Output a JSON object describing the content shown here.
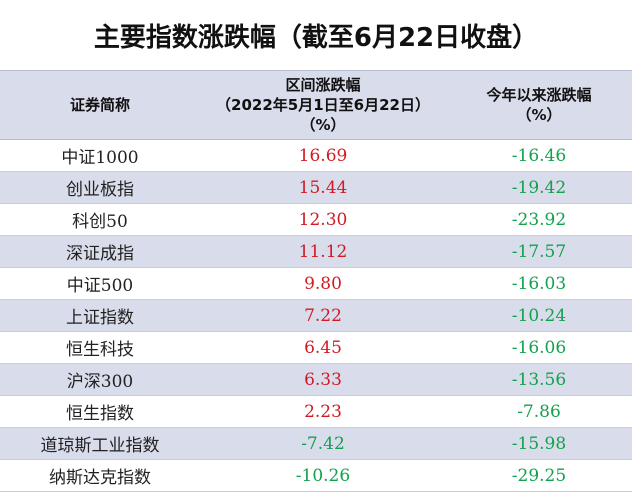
{
  "title": "主要指数涨跌幅（截至6月22日收盘）",
  "headers": {
    "col1": "证券简称",
    "col2_line1": "区间涨跌幅",
    "col2_line2": "（2022年5月1日至6月22日）",
    "col2_line3": "（%）",
    "col3_line1": "今年以来涨跌幅",
    "col3_line2": "（%）"
  },
  "colors": {
    "positive": "#d11b24",
    "negative": "#13a14e",
    "header_bg": "#d9dcea"
  },
  "rows": [
    {
      "name": "中证1000",
      "period": "16.69",
      "ytd": "-16.46"
    },
    {
      "name": "创业板指",
      "period": "15.44",
      "ytd": "-19.42"
    },
    {
      "name": "科创50",
      "period": "12.30",
      "ytd": "-23.92"
    },
    {
      "name": "深证成指",
      "period": "11.12",
      "ytd": "-17.57"
    },
    {
      "name": "中证500",
      "period": "9.80",
      "ytd": "-16.03"
    },
    {
      "name": "上证指数",
      "period": "7.22",
      "ytd": "-10.24"
    },
    {
      "name": "恒生科技",
      "period": "6.45",
      "ytd": "-16.06"
    },
    {
      "name": "沪深300",
      "period": "6.33",
      "ytd": "-13.56"
    },
    {
      "name": "恒生指数",
      "period": "2.23",
      "ytd": "-7.86"
    },
    {
      "name": "道琼斯工业指数",
      "period": "-7.42",
      "ytd": "-15.98"
    },
    {
      "name": "纳斯达克指数",
      "period": "-10.26",
      "ytd": "-29.25"
    }
  ]
}
